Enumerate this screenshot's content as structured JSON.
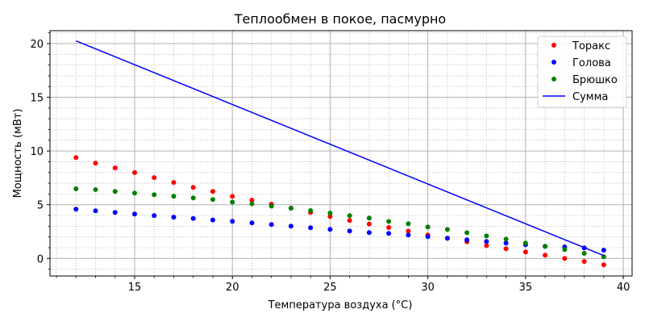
{
  "chart_data": {
    "type": "scatter",
    "title": "Теплообмен в покое, пасмурно",
    "xlabel": "Температура воздуха (°C)",
    "ylabel": "Мощность (мВт)",
    "xlim": [
      10.67,
      40.45
    ],
    "ylim": [
      -1.63,
      21.2
    ],
    "xticks": [
      15,
      20,
      25,
      30,
      35,
      40
    ],
    "yticks": [
      0,
      5,
      10,
      15,
      20
    ],
    "grid": {
      "major": true,
      "minor": true
    },
    "legend_position": "upper right",
    "x": [
      12,
      13,
      14,
      15,
      16,
      17,
      18,
      19,
      20,
      21,
      22,
      23,
      24,
      25,
      26,
      27,
      28,
      29,
      30,
      31,
      32,
      33,
      34,
      35,
      36,
      37,
      38,
      39
    ],
    "series": [
      {
        "name": "Торакс",
        "kind": "points",
        "color": "#ff0000",
        "values": [
          9.39,
          8.87,
          8.42,
          7.99,
          7.52,
          7.07,
          6.61,
          6.24,
          5.78,
          5.43,
          5.05,
          4.68,
          4.28,
          3.91,
          3.53,
          3.2,
          2.88,
          2.55,
          2.18,
          1.88,
          1.55,
          1.2,
          0.9,
          0.6,
          0.3,
          0.0,
          -0.28,
          -0.6
        ]
      },
      {
        "name": "Голова",
        "kind": "points",
        "color": "#0000ff",
        "values": [
          4.58,
          4.43,
          4.28,
          4.13,
          3.98,
          3.84,
          3.72,
          3.58,
          3.46,
          3.31,
          3.16,
          3.01,
          2.86,
          2.71,
          2.56,
          2.41,
          2.33,
          2.18,
          2.03,
          1.88,
          1.73,
          1.58,
          1.43,
          1.28,
          1.13,
          1.07,
          0.98,
          0.77
        ]
      },
      {
        "name": "Брюшко",
        "kind": "points",
        "color": "#008000",
        "values": [
          6.48,
          6.41,
          6.24,
          6.09,
          5.94,
          5.79,
          5.64,
          5.49,
          5.24,
          5.09,
          4.87,
          4.68,
          4.45,
          4.23,
          3.98,
          3.76,
          3.45,
          3.23,
          2.93,
          2.7,
          2.4,
          2.1,
          1.8,
          1.43,
          1.13,
          0.83,
          0.47,
          0.15
        ]
      },
      {
        "name": "Сумма",
        "kind": "line",
        "color": "#0000ff",
        "x": [
          12,
          39
        ],
        "values": [
          20.25,
          0.27
        ]
      }
    ]
  }
}
